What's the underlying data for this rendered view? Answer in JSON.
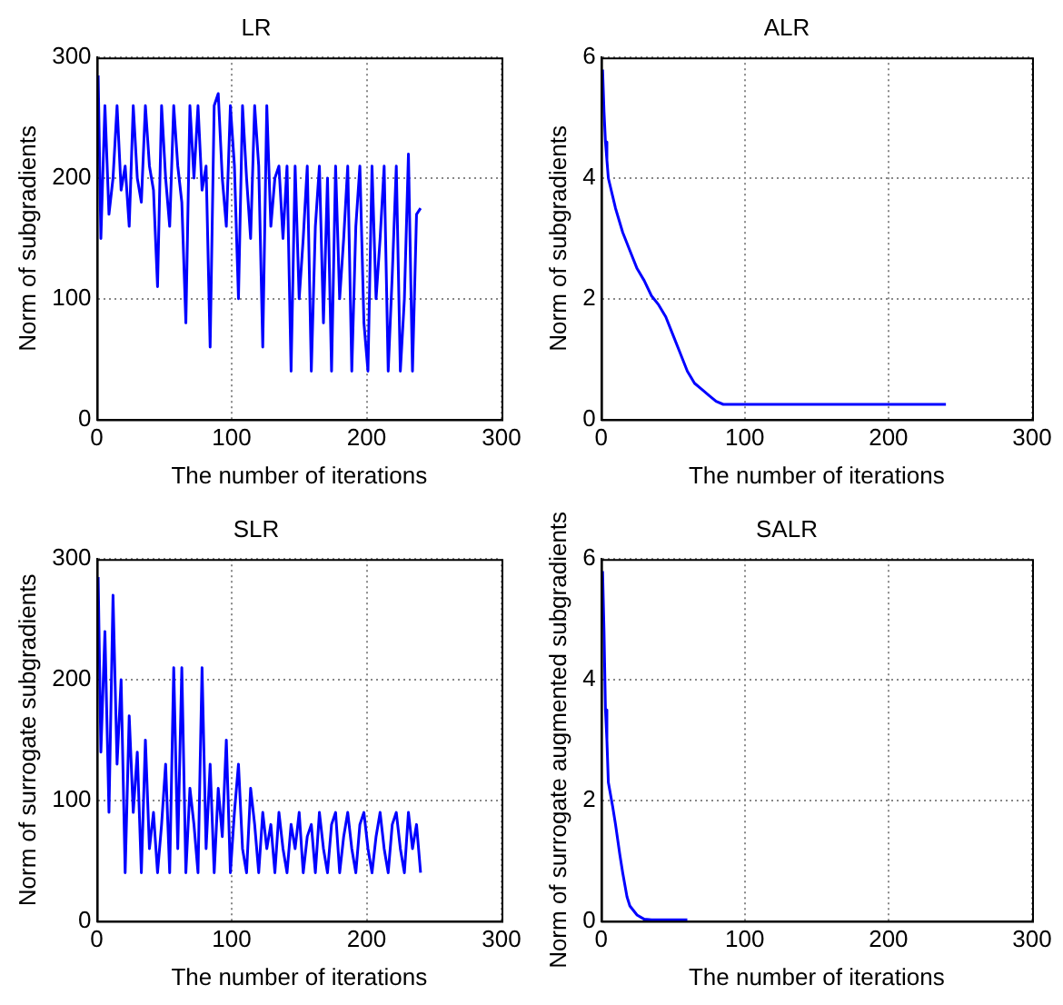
{
  "chart_data": [
    {
      "type": "line",
      "title": "LR",
      "xlabel": "The number of iterations",
      "ylabel": "Norm of subgradients",
      "color": "#0000ff",
      "xlim": [
        0,
        300
      ],
      "xticks": [
        0,
        100,
        200,
        300
      ],
      "ylim": [
        0,
        300
      ],
      "yticks": [
        0,
        100,
        200,
        300
      ],
      "grid": true,
      "x": [
        1,
        3,
        6,
        9,
        12,
        15,
        18,
        21,
        24,
        27,
        30,
        33,
        36,
        39,
        42,
        45,
        48,
        51,
        54,
        57,
        60,
        63,
        66,
        69,
        72,
        75,
        78,
        81,
        84,
        87,
        90,
        93,
        96,
        99,
        102,
        105,
        108,
        111,
        114,
        117,
        120,
        123,
        126,
        129,
        132,
        135,
        138,
        141,
        144,
        147,
        150,
        153,
        156,
        159,
        162,
        165,
        168,
        171,
        174,
        177,
        180,
        183,
        186,
        189,
        192,
        195,
        198,
        201,
        204,
        207,
        210,
        213,
        216,
        219,
        222,
        225,
        228,
        231,
        234,
        237,
        240
      ],
      "values": [
        285,
        150,
        260,
        170,
        200,
        260,
        190,
        210,
        160,
        260,
        200,
        180,
        260,
        210,
        190,
        110,
        260,
        200,
        160,
        260,
        210,
        180,
        80,
        260,
        200,
        260,
        190,
        210,
        60,
        260,
        270,
        200,
        160,
        260,
        210,
        100,
        260,
        200,
        150,
        260,
        210,
        60,
        260,
        160,
        200,
        210,
        150,
        210,
        40,
        210,
        100,
        150,
        210,
        40,
        160,
        210,
        80,
        200,
        40,
        210,
        100,
        150,
        210,
        40,
        160,
        210,
        80,
        40,
        210,
        100,
        150,
        210,
        40,
        120,
        210,
        40,
        100,
        220,
        40,
        170,
        175
      ]
    },
    {
      "type": "line",
      "title": "ALR",
      "xlabel": "The number of iterations",
      "ylabel": "Norm of subgradients",
      "color": "#0000ff",
      "xlim": [
        0,
        300
      ],
      "xticks": [
        0,
        100,
        200,
        300
      ],
      "ylim": [
        0,
        6
      ],
      "yticks": [
        0,
        2,
        4,
        6
      ],
      "grid": true,
      "x": [
        1,
        2,
        3,
        4,
        5,
        8,
        10,
        15,
        20,
        25,
        30,
        35,
        40,
        45,
        50,
        55,
        60,
        65,
        70,
        75,
        80,
        85,
        90,
        100,
        120,
        150,
        200,
        240
      ],
      "values": [
        5.8,
        5.1,
        4.6,
        4.3,
        4.0,
        3.7,
        3.5,
        3.1,
        2.8,
        2.5,
        2.3,
        2.05,
        1.9,
        1.7,
        1.4,
        1.1,
        0.8,
        0.6,
        0.5,
        0.4,
        0.3,
        0.25,
        0.25,
        0.25,
        0.25,
        0.25,
        0.25,
        0.25
      ]
    },
    {
      "type": "line",
      "title": "SLR",
      "xlabel": "The number of iterations",
      "ylabel": "Norm of surrogate subgradients",
      "color": "#0000ff",
      "xlim": [
        0,
        300
      ],
      "xticks": [
        0,
        100,
        200,
        300
      ],
      "ylim": [
        0,
        300
      ],
      "yticks": [
        0,
        100,
        200,
        300
      ],
      "grid": true,
      "x": [
        1,
        3,
        6,
        9,
        12,
        15,
        18,
        21,
        24,
        27,
        30,
        33,
        36,
        39,
        42,
        45,
        48,
        51,
        54,
        57,
        60,
        63,
        66,
        69,
        72,
        75,
        78,
        81,
        84,
        87,
        90,
        93,
        96,
        99,
        102,
        105,
        108,
        111,
        114,
        117,
        120,
        123,
        126,
        129,
        132,
        135,
        138,
        141,
        144,
        147,
        150,
        153,
        156,
        159,
        162,
        165,
        168,
        171,
        174,
        177,
        180,
        183,
        186,
        189,
        192,
        195,
        198,
        201,
        204,
        207,
        210,
        213,
        216,
        219,
        222,
        225,
        228,
        231,
        234,
        237,
        240
      ],
      "values": [
        285,
        140,
        240,
        90,
        270,
        130,
        200,
        40,
        170,
        90,
        140,
        40,
        150,
        60,
        90,
        40,
        80,
        130,
        40,
        210,
        60,
        210,
        40,
        110,
        80,
        40,
        210,
        60,
        130,
        40,
        110,
        70,
        150,
        40,
        90,
        130,
        60,
        40,
        110,
        80,
        40,
        90,
        60,
        80,
        40,
        90,
        60,
        40,
        80,
        60,
        90,
        40,
        70,
        80,
        40,
        90,
        60,
        40,
        80,
        90,
        40,
        70,
        90,
        60,
        40,
        80,
        90,
        60,
        40,
        70,
        90,
        60,
        40,
        80,
        90,
        60,
        40,
        90,
        60,
        80,
        40
      ]
    },
    {
      "type": "line",
      "title": "SALR",
      "xlabel": "The number of iterations",
      "ylabel": "Norm of surrogate augmented subgradients",
      "color": "#0000ff",
      "xlim": [
        0,
        300
      ],
      "xticks": [
        0,
        100,
        200,
        300
      ],
      "ylim": [
        0,
        6
      ],
      "yticks": [
        0,
        2,
        4,
        6
      ],
      "grid": true,
      "x": [
        1,
        2,
        3,
        4,
        5,
        8,
        10,
        13,
        15,
        18,
        20,
        25,
        30,
        35,
        40,
        50,
        60
      ],
      "values": [
        5.8,
        4.8,
        3.5,
        3.0,
        2.3,
        1.9,
        1.6,
        1.1,
        0.8,
        0.4,
        0.25,
        0.1,
        0.03,
        0.02,
        0.02,
        0.02,
        0.02
      ]
    }
  ]
}
